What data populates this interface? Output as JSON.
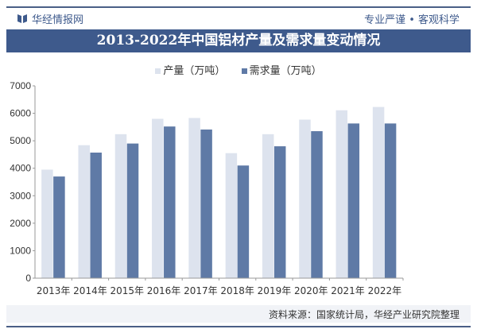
{
  "header": {
    "brand": "华经情报网",
    "slogan": "专业严谨 • 客观科学"
  },
  "colors": {
    "brand": "#3e5a8c",
    "production": "#dde3ee",
    "demand": "#5f7aa6"
  },
  "chart_data": {
    "type": "bar",
    "title": "2013-2022年中国铝材产量及需求量变动情况",
    "categories": [
      "2013年",
      "2014年",
      "2015年",
      "2016年",
      "2017年",
      "2018年",
      "2019年",
      "2020年",
      "2021年",
      "2022年"
    ],
    "series": [
      {
        "name": "产量（万吨）",
        "values": [
          3950,
          4840,
          5240,
          5800,
          5830,
          4550,
          5240,
          5770,
          6110,
          6230
        ]
      },
      {
        "name": "需求量（万吨）",
        "values": [
          3700,
          4570,
          4900,
          5520,
          5410,
          4100,
          4800,
          5350,
          5630,
          5630
        ]
      }
    ],
    "ylim": [
      0,
      7000
    ],
    "yticks": [
      0,
      1000,
      2000,
      3000,
      4000,
      5000,
      6000,
      7000
    ],
    "grid": false,
    "legend": "top-center"
  },
  "footer": {
    "source": "资料来源：国家统计局，华经产业研究院整理"
  }
}
